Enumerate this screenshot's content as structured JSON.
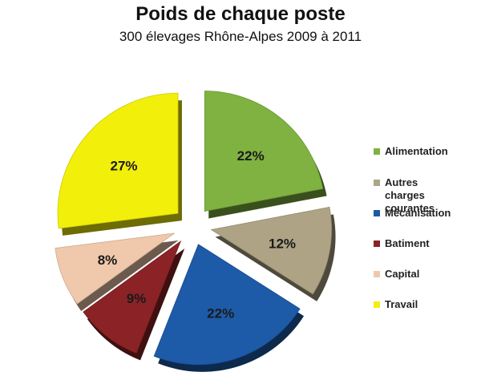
{
  "chart_data": {
    "type": "pie",
    "title": "Poids de chaque poste",
    "subtitle": "300 élevages Rhône-Alpes 2009 à 2011",
    "exploded": true,
    "style": "3d",
    "legend_position": "right",
    "slices": [
      {
        "label": "Alimentation",
        "value": 22,
        "display": "22%",
        "color": "#7fb241"
      },
      {
        "label": "Autres charges courantes",
        "value": 12,
        "display": "12%",
        "color": "#aea385"
      },
      {
        "label": "Mécanisation",
        "value": 22,
        "display": "22%",
        "color": "#1d5aa8"
      },
      {
        "label": "Batiment",
        "value": 9,
        "display": "9%",
        "color": "#8b2326"
      },
      {
        "label": "Capital",
        "value": 8,
        "display": "8%",
        "color": "#f0c8ac"
      },
      {
        "label": "Travail",
        "value": 27,
        "display": "27%",
        "color": "#f2ef0b"
      }
    ]
  }
}
